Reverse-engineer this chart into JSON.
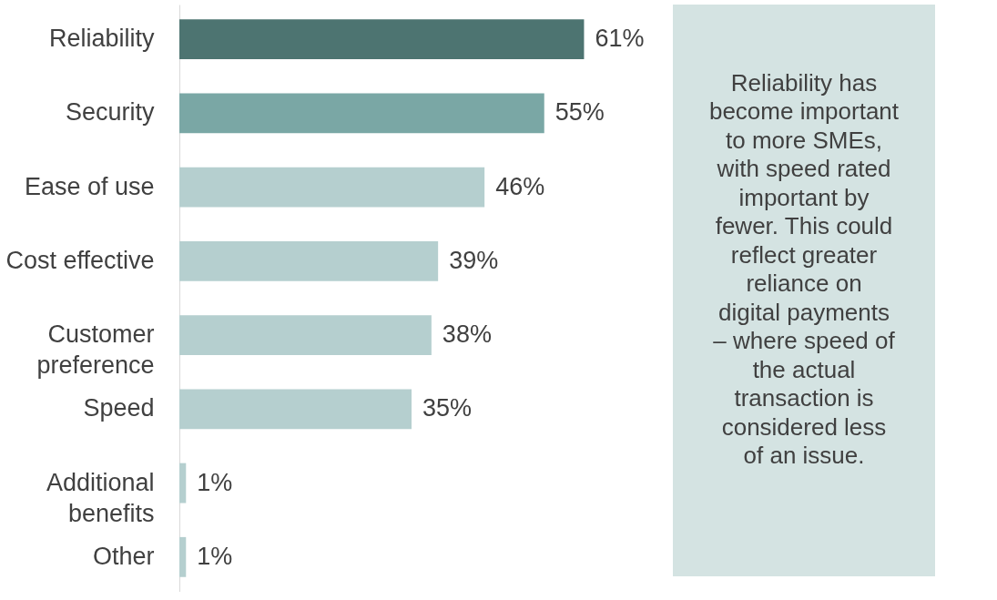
{
  "chart_data": {
    "type": "bar",
    "orientation": "horizontal",
    "categories": [
      "Reliability",
      "Security",
      "Ease of use",
      "Cost effective",
      "Customer preference",
      "Speed",
      "Additional benefits",
      "Other"
    ],
    "values": [
      61,
      55,
      46,
      39,
      38,
      35,
      1,
      1
    ],
    "value_labels": [
      "61%",
      "55%",
      "46%",
      "39%",
      "38%",
      "35%",
      "1%",
      "1%"
    ],
    "colors": [
      "#4d7471",
      "#7aa7a5",
      "#b5cfcf",
      "#b5cfcf",
      "#b5cfcf",
      "#b5cfcf",
      "#b5cfcf",
      "#b5cfcf"
    ],
    "annotations": [
      "Reliability has become important to more SMEs, with speed rated important by fewer. This could reflect greater reliance on digital payments – where speed of the actual transaction is considered less of an issue."
    ],
    "grid": false
  }
}
